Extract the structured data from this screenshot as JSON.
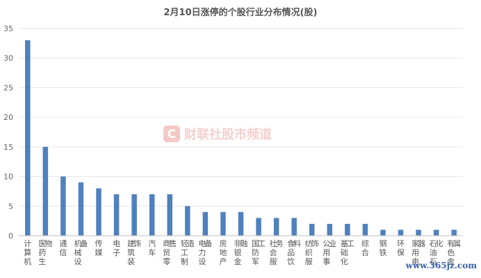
{
  "chart_data": {
    "type": "bar",
    "title": "2月10日涨停的个股行业分布情况(股)",
    "xlabel": "",
    "ylabel": "",
    "ylim": [
      0,
      35
    ],
    "yticks": [
      0,
      5,
      10,
      15,
      20,
      25,
      30,
      35
    ],
    "grid": true,
    "legend": "none",
    "bar_color": "#4f81bd",
    "categories": [
      "计算机",
      "医药生物",
      "通信",
      "机械设备",
      "传媒",
      "电子",
      "建筑装饰",
      "汽车",
      "商贸零售",
      "轻工制造",
      "电力设备",
      "房地产",
      "非银金融",
      "国防军工",
      "社会服务",
      "食品饮料",
      "纺织服饰",
      "公用事业",
      "基础化工",
      "综合",
      "钢铁",
      "环保",
      "家用电器",
      "石油石化",
      "有色金属"
    ],
    "values": [
      33,
      15,
      10,
      9,
      8,
      7,
      7,
      7,
      7,
      5,
      4,
      4,
      4,
      3,
      3,
      3,
      2,
      2,
      2,
      2,
      1,
      1,
      1,
      1,
      1
    ]
  },
  "watermark": {
    "logo_letter": "C",
    "text": "财联社股市频道",
    "logo_color": "#f3c8c5",
    "text_color": "#f3d1cf"
  },
  "corner_watermark": {
    "text": "www.365jz.com",
    "color": "#3a5fa6"
  }
}
